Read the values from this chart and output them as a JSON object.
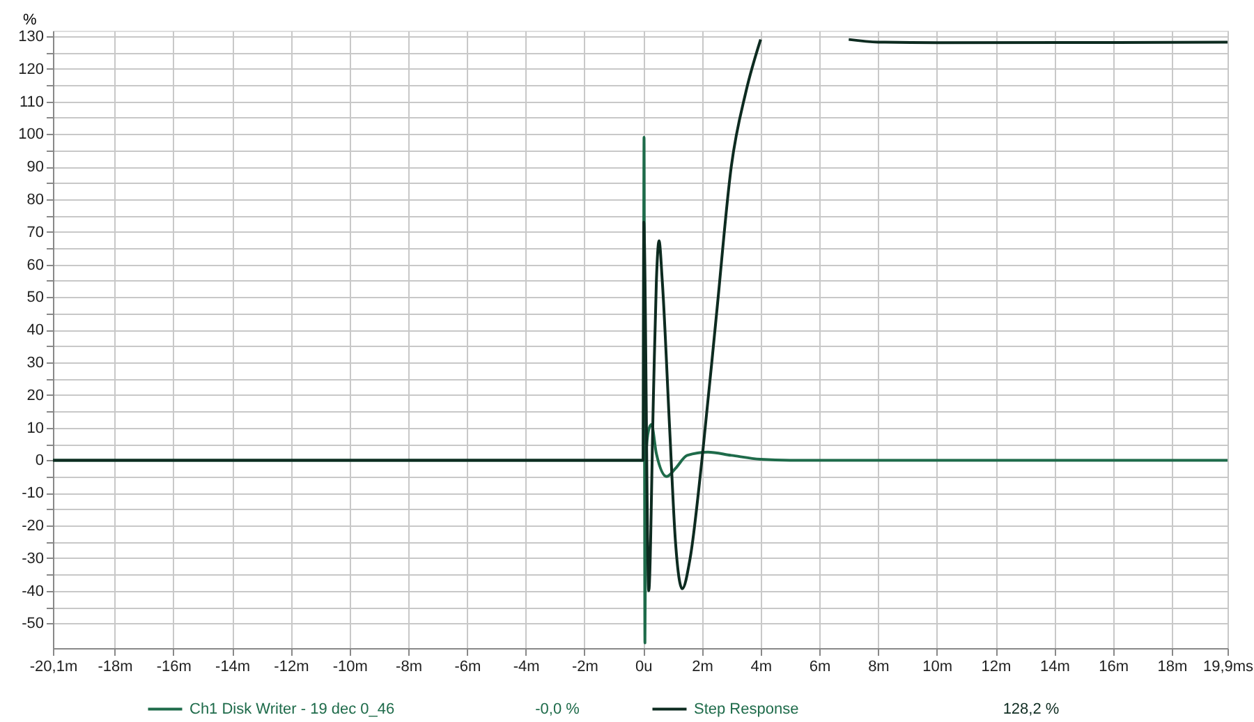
{
  "chart_data": {
    "type": "line",
    "ylabel": "%",
    "xlim": [
      -20.1,
      19.9
    ],
    "ylim": [
      -57.6,
      131.7
    ],
    "xticks": [
      {
        "value": -20.1,
        "label": "-20,1m"
      },
      {
        "value": -18,
        "label": "-18m"
      },
      {
        "value": -16,
        "label": "-16m"
      },
      {
        "value": -14,
        "label": "-14m"
      },
      {
        "value": -12,
        "label": "-12m"
      },
      {
        "value": -10,
        "label": "-10m"
      },
      {
        "value": -8,
        "label": "-8m"
      },
      {
        "value": -6,
        "label": "-6m"
      },
      {
        "value": -4,
        "label": "-4m"
      },
      {
        "value": -2,
        "label": "-2m"
      },
      {
        "value": 0,
        "label": "0u"
      },
      {
        "value": 2,
        "label": "2m"
      },
      {
        "value": 4,
        "label": "4m"
      },
      {
        "value": 6,
        "label": "6m"
      },
      {
        "value": 8,
        "label": "8m"
      },
      {
        "value": 10,
        "label": "10m"
      },
      {
        "value": 12,
        "label": "12m"
      },
      {
        "value": 14,
        "label": "14m"
      },
      {
        "value": 16,
        "label": "16m"
      },
      {
        "value": 18,
        "label": "18m"
      },
      {
        "value": 19.9,
        "label": "19,9ms"
      }
    ],
    "yticks": [
      -50,
      {
        "value": -45,
        "label": null
      },
      -40,
      {
        "value": -35,
        "label": null
      },
      -30,
      {
        "value": -25,
        "label": null
      },
      -20,
      {
        "value": -15,
        "label": null
      },
      -10,
      {
        "value": -5,
        "label": null
      },
      0,
      {
        "value": 5,
        "label": null
      },
      10,
      {
        "value": 15,
        "label": null
      },
      20,
      {
        "value": 25,
        "label": null
      },
      30,
      {
        "value": 35,
        "label": null
      },
      40,
      {
        "value": 45,
        "label": null
      },
      50,
      {
        "value": 55,
        "label": null
      },
      60,
      {
        "value": 65,
        "label": null
      },
      70,
      {
        "value": 75,
        "label": null
      },
      80,
      {
        "value": 85,
        "label": null
      },
      90,
      {
        "value": 95,
        "label": null
      },
      100,
      {
        "value": 105,
        "label": null
      },
      110,
      {
        "value": 115,
        "label": null
      },
      120,
      {
        "value": 125,
        "label": null
      },
      130
    ],
    "grid": true,
    "legend": "bottom",
    "marker": "none",
    "line_style": "solid",
    "series": [
      {
        "name": "Ch1 Disk Writer - 19 dec 0_46",
        "color": "#1e6b4a",
        "x": [
          -20.1,
          0,
          0.03,
          0.06,
          0.1,
          0.18,
          0.28,
          0.45,
          0.8,
          1.1,
          1.5,
          2.2,
          3,
          4,
          5,
          19.9
        ],
        "values": [
          0,
          0,
          99,
          -56,
          2,
          9,
          11,
          2,
          -5,
          -2.5,
          1.5,
          2.5,
          1.5,
          0.3,
          0,
          0
        ]
      },
      {
        "name": "Step Response",
        "color": "#0d2b20",
        "x": [
          -20.1,
          0,
          0.02,
          0.19,
          0.35,
          0.45,
          0.54,
          0.65,
          0.9,
          1.1,
          1.33,
          1.6,
          2.0,
          2.5,
          3.0,
          3.5,
          4.0,
          4.2,
          5.0,
          6.1,
          7,
          8,
          10,
          19.9
        ],
        "values": [
          0,
          0,
          73,
          -40,
          20,
          55,
          67.3,
          55,
          10,
          -25,
          -39.4,
          -30,
          0,
          45,
          90,
          113,
          129,
          null,
          null,
          null,
          129,
          128.2,
          128,
          128.2
        ]
      }
    ],
    "annotations": [
      "-0,0 %",
      "128,2 %"
    ]
  }
}
